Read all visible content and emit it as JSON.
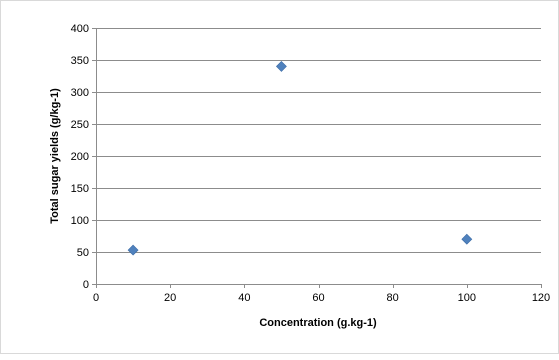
{
  "chart_data": {
    "type": "scatter",
    "title": "",
    "xlabel": "Concentration (g.kg-1)",
    "ylabel": "Total sugar yields (g/kg-1)",
    "xlim": [
      0,
      120
    ],
    "ylim": [
      0,
      400
    ],
    "x_ticks": [
      0,
      20,
      40,
      60,
      80,
      100,
      120
    ],
    "y_ticks": [
      0,
      50,
      100,
      150,
      200,
      250,
      300,
      350,
      400
    ],
    "grid": "horizontal",
    "legend": "none",
    "marker": "diamond",
    "series": [
      {
        "color": "#4f81bd",
        "points": [
          {
            "x": 10,
            "y": 53
          },
          {
            "x": 50,
            "y": 340
          },
          {
            "x": 100,
            "y": 70
          }
        ]
      }
    ]
  }
}
